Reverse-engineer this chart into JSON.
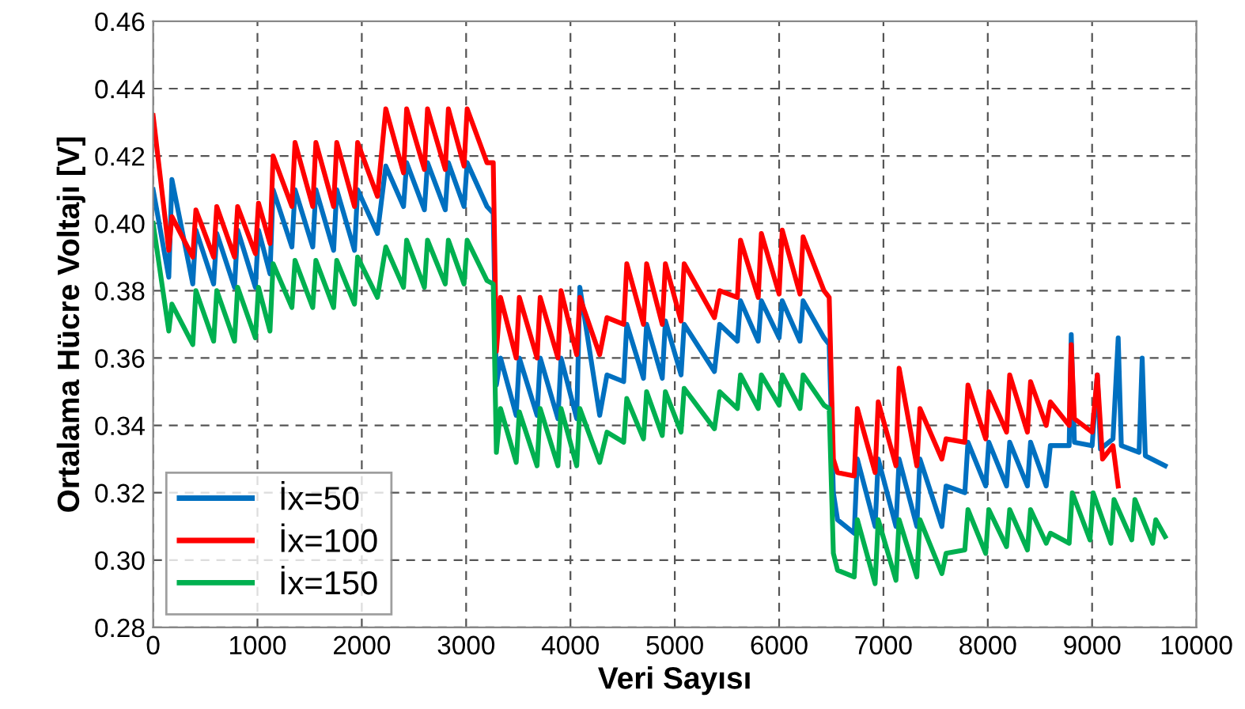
{
  "chart_data": {
    "type": "line",
    "xlabel": "Veri Sayısı",
    "ylabel": "Ortalama Hücre Voltajı [V]",
    "xlim": [
      0,
      10000
    ],
    "xticks": [
      0,
      1000,
      2000,
      3000,
      4000,
      5000,
      6000,
      7000,
      8000,
      9000,
      10000
    ],
    "ylim": [
      0.28,
      0.46
    ],
    "yticks": [
      {
        "value": 0.28,
        "label": "0.28"
      },
      {
        "value": 0.3,
        "label": "0.30"
      },
      {
        "value": 0.32,
        "label": "0.32"
      },
      {
        "value": 0.34,
        "label": "0.34"
      },
      {
        "value": 0.36,
        "label": "0.36"
      },
      {
        "value": 0.38,
        "label": "0.38"
      },
      {
        "value": 0.4,
        "label": "0.40"
      },
      {
        "value": 0.42,
        "label": "0.42"
      },
      {
        "value": 0.44,
        "label": "0.44"
      },
      {
        "value": 0.46,
        "label": "0.46"
      }
    ],
    "grid": true,
    "legend": "bottom left",
    "line_style": "solid",
    "marker": "none",
    "series": [
      {
        "name": "İx=50",
        "color": "#0070c0",
        "x": [
          0,
          150,
          180,
          380,
          410,
          580,
          610,
          780,
          810,
          980,
          1010,
          1120,
          1150,
          1330,
          1360,
          1530,
          1560,
          1730,
          1760,
          1930,
          1960,
          2150,
          2230,
          2400,
          2430,
          2600,
          2630,
          2800,
          2830,
          2980,
          3010,
          3200,
          3260,
          3290,
          3330,
          3480,
          3510,
          3680,
          3710,
          3880,
          3910,
          4060,
          4090,
          4280,
          4350,
          4510,
          4540,
          4700,
          4730,
          4880,
          4910,
          5060,
          5090,
          5380,
          5430,
          5600,
          5630,
          5800,
          5830,
          6000,
          6030,
          6200,
          6230,
          6430,
          6480,
          6520,
          6560,
          6720,
          6750,
          6920,
          6950,
          7120,
          7150,
          7320,
          7350,
          7560,
          7600,
          7780,
          7810,
          7980,
          8010,
          8180,
          8210,
          8380,
          8410,
          8560,
          8600,
          8780,
          8800,
          8830,
          9000,
          9050,
          9080,
          9200,
          9250,
          9280,
          9450,
          9480,
          9510,
          9700
        ],
        "values": [
          0.41,
          0.384,
          0.413,
          0.382,
          0.398,
          0.382,
          0.397,
          0.381,
          0.398,
          0.381,
          0.398,
          0.385,
          0.41,
          0.393,
          0.41,
          0.393,
          0.41,
          0.392,
          0.41,
          0.392,
          0.41,
          0.397,
          0.417,
          0.405,
          0.418,
          0.404,
          0.418,
          0.404,
          0.418,
          0.405,
          0.418,
          0.405,
          0.403,
          0.352,
          0.36,
          0.343,
          0.36,
          0.343,
          0.36,
          0.342,
          0.36,
          0.342,
          0.381,
          0.343,
          0.355,
          0.353,
          0.37,
          0.354,
          0.37,
          0.354,
          0.371,
          0.355,
          0.37,
          0.356,
          0.37,
          0.365,
          0.377,
          0.365,
          0.377,
          0.366,
          0.377,
          0.365,
          0.377,
          0.366,
          0.364,
          0.32,
          0.312,
          0.308,
          0.33,
          0.31,
          0.33,
          0.31,
          0.33,
          0.31,
          0.33,
          0.31,
          0.322,
          0.32,
          0.335,
          0.322,
          0.335,
          0.322,
          0.335,
          0.322,
          0.335,
          0.322,
          0.334,
          0.334,
          0.367,
          0.335,
          0.334,
          0.355,
          0.333,
          0.336,
          0.366,
          0.334,
          0.332,
          0.36,
          0.331,
          0.328
        ]
      },
      {
        "name": "İx=100",
        "color": "#ff0000",
        "x": [
          0,
          150,
          180,
          380,
          410,
          580,
          610,
          780,
          810,
          980,
          1010,
          1120,
          1150,
          1330,
          1360,
          1530,
          1560,
          1730,
          1760,
          1930,
          1960,
          2150,
          2230,
          2400,
          2430,
          2600,
          2630,
          2800,
          2830,
          2980,
          3010,
          3200,
          3260,
          3290,
          3330,
          3480,
          3510,
          3680,
          3710,
          3880,
          3910,
          4060,
          4090,
          4280,
          4350,
          4510,
          4540,
          4700,
          4730,
          4880,
          4910,
          5060,
          5090,
          5380,
          5430,
          5600,
          5630,
          5800,
          5830,
          6000,
          6030,
          6200,
          6230,
          6430,
          6480,
          6520,
          6560,
          6720,
          6750,
          6920,
          6950,
          7120,
          7150,
          7320,
          7350,
          7560,
          7600,
          7780,
          7810,
          7980,
          8010,
          8180,
          8210,
          8380,
          8410,
          8560,
          8600,
          8780,
          8800,
          8830,
          9000,
          9050,
          9100,
          9200,
          9250
        ],
        "values": [
          0.432,
          0.392,
          0.402,
          0.39,
          0.404,
          0.39,
          0.405,
          0.39,
          0.405,
          0.391,
          0.406,
          0.394,
          0.42,
          0.405,
          0.424,
          0.405,
          0.424,
          0.405,
          0.424,
          0.405,
          0.424,
          0.408,
          0.434,
          0.415,
          0.434,
          0.416,
          0.434,
          0.416,
          0.434,
          0.417,
          0.434,
          0.418,
          0.418,
          0.362,
          0.378,
          0.36,
          0.378,
          0.36,
          0.378,
          0.36,
          0.38,
          0.361,
          0.378,
          0.361,
          0.372,
          0.37,
          0.388,
          0.37,
          0.388,
          0.37,
          0.388,
          0.371,
          0.388,
          0.372,
          0.38,
          0.378,
          0.395,
          0.378,
          0.397,
          0.379,
          0.398,
          0.379,
          0.396,
          0.38,
          0.378,
          0.33,
          0.326,
          0.325,
          0.345,
          0.326,
          0.347,
          0.328,
          0.357,
          0.328,
          0.345,
          0.33,
          0.336,
          0.335,
          0.352,
          0.336,
          0.35,
          0.338,
          0.355,
          0.338,
          0.353,
          0.34,
          0.347,
          0.34,
          0.364,
          0.342,
          0.338,
          0.355,
          0.33,
          0.334,
          0.322
        ]
      },
      {
        "name": "İx=150",
        "color": "#00b050",
        "x": [
          0,
          150,
          180,
          380,
          410,
          580,
          610,
          780,
          810,
          980,
          1010,
          1120,
          1150,
          1330,
          1360,
          1530,
          1560,
          1730,
          1760,
          1930,
          1960,
          2150,
          2230,
          2400,
          2430,
          2600,
          2630,
          2800,
          2830,
          2980,
          3010,
          3200,
          3260,
          3290,
          3330,
          3480,
          3510,
          3680,
          3710,
          3880,
          3910,
          4060,
          4090,
          4280,
          4350,
          4510,
          4540,
          4700,
          4730,
          4880,
          4910,
          5060,
          5090,
          5380,
          5430,
          5600,
          5630,
          5800,
          5830,
          6000,
          6030,
          6200,
          6230,
          6430,
          6480,
          6520,
          6560,
          6720,
          6750,
          6920,
          6950,
          7120,
          7150,
          7320,
          7350,
          7560,
          7600,
          7780,
          7810,
          7980,
          8010,
          8180,
          8210,
          8380,
          8410,
          8560,
          8600,
          8780,
          8810,
          8980,
          9010,
          9180,
          9210,
          9380,
          9410,
          9580,
          9610,
          9700
        ],
        "values": [
          0.4,
          0.368,
          0.376,
          0.364,
          0.38,
          0.365,
          0.38,
          0.365,
          0.381,
          0.366,
          0.381,
          0.368,
          0.388,
          0.375,
          0.389,
          0.375,
          0.389,
          0.375,
          0.389,
          0.376,
          0.39,
          0.378,
          0.393,
          0.381,
          0.395,
          0.381,
          0.395,
          0.382,
          0.395,
          0.382,
          0.395,
          0.383,
          0.382,
          0.332,
          0.345,
          0.329,
          0.344,
          0.328,
          0.345,
          0.328,
          0.345,
          0.328,
          0.345,
          0.329,
          0.338,
          0.335,
          0.348,
          0.336,
          0.35,
          0.337,
          0.35,
          0.338,
          0.351,
          0.339,
          0.35,
          0.345,
          0.355,
          0.345,
          0.355,
          0.346,
          0.355,
          0.345,
          0.355,
          0.346,
          0.345,
          0.302,
          0.297,
          0.295,
          0.312,
          0.293,
          0.312,
          0.294,
          0.312,
          0.295,
          0.312,
          0.296,
          0.302,
          0.303,
          0.315,
          0.302,
          0.315,
          0.304,
          0.315,
          0.303,
          0.315,
          0.305,
          0.308,
          0.305,
          0.32,
          0.306,
          0.32,
          0.305,
          0.318,
          0.306,
          0.318,
          0.305,
          0.312,
          0.307
        ]
      }
    ]
  }
}
